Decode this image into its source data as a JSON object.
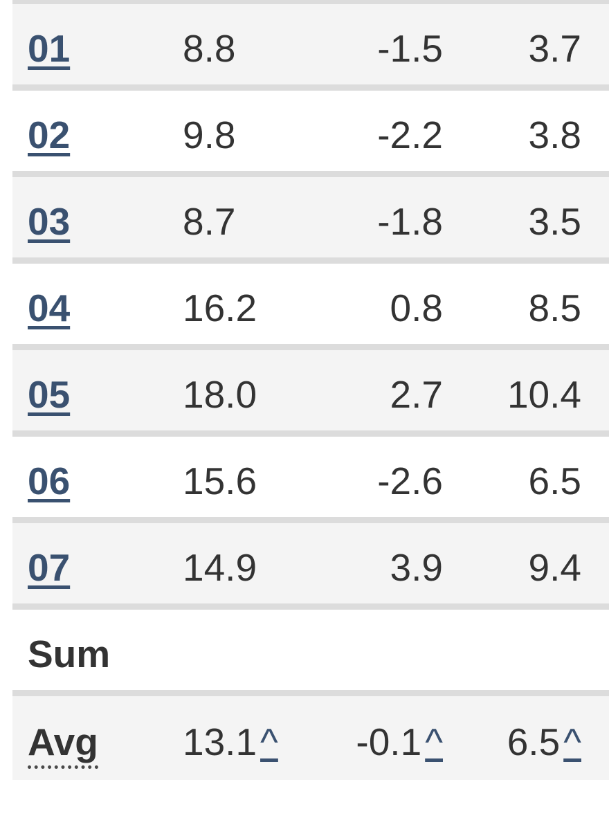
{
  "colors": {
    "row_alt_background": "#f4f4f4",
    "row_background": "#ffffff",
    "divider": "#dcdcdc",
    "text": "#333333",
    "link": "#3a5170"
  },
  "table": {
    "month_rows": [
      {
        "label": "01",
        "values": [
          "8.8",
          "-1.5",
          "3.7"
        ]
      },
      {
        "label": "02",
        "values": [
          "9.8",
          "-2.2",
          "3.8"
        ]
      },
      {
        "label": "03",
        "values": [
          "8.7",
          "-1.8",
          "3.5"
        ]
      },
      {
        "label": "04",
        "values": [
          "16.2",
          "0.8",
          "8.5"
        ]
      },
      {
        "label": "05",
        "values": [
          "18.0",
          "2.7",
          "10.4"
        ]
      },
      {
        "label": "06",
        "values": [
          "15.6",
          "-2.6",
          "6.5"
        ]
      },
      {
        "label": "07",
        "values": [
          "14.9",
          "3.9",
          "9.4"
        ]
      }
    ],
    "sum_row": {
      "label": "Sum",
      "values": [
        "",
        "",
        ""
      ]
    },
    "avg_row": {
      "label": "Avg",
      "values": [
        "13.1",
        "-0.1",
        "6.5"
      ],
      "footnote_symbol": "^"
    }
  }
}
